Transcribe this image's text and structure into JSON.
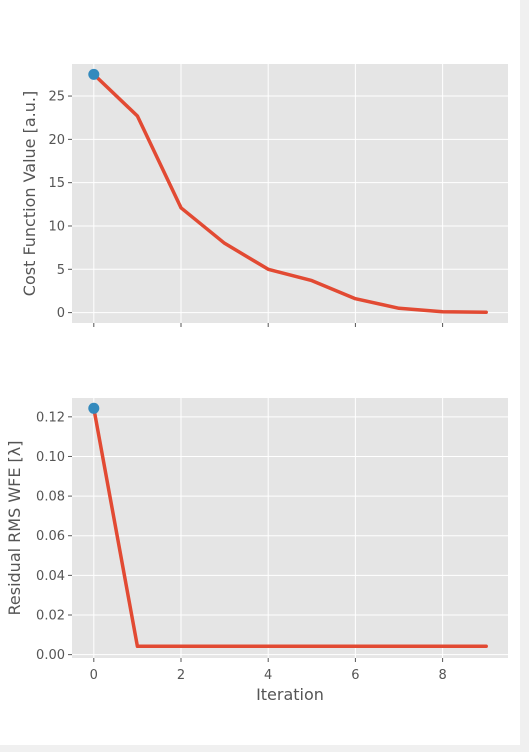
{
  "colors": {
    "panel_bg": "#e5e5e5",
    "grid": "#ffffff",
    "tick_text": "#555555",
    "line": "#e24a33",
    "marker": "#348abd"
  },
  "chart_data": [
    {
      "type": "line",
      "title": "",
      "xlabel": "",
      "ylabel": "Cost Function Value [a.u.]",
      "x": [
        0,
        1,
        2,
        3,
        4,
        5,
        6,
        7,
        8,
        9
      ],
      "series": [
        {
          "values": [
            27.5,
            22.7,
            12.1,
            8.0,
            5.0,
            3.7,
            1.6,
            0.5,
            0.1,
            0.05
          ]
        }
      ],
      "highlight_point": {
        "x": 0,
        "y": 27.5
      },
      "xlim": [
        -0.5,
        9.5
      ],
      "ylim": [
        -1.2,
        28.7
      ],
      "xticks": [
        0,
        2,
        4,
        6,
        8
      ],
      "xtick_labels_visible": false,
      "yticks": [
        0,
        5,
        10,
        15,
        20,
        25
      ],
      "ytick_labels": [
        "0",
        "5",
        "10",
        "15",
        "20",
        "25"
      ],
      "grid": true,
      "style": "ggplot"
    },
    {
      "type": "line",
      "title": "",
      "xlabel": "Iteration",
      "ylabel": "Residual RMS WFE [λ]",
      "x": [
        0,
        1,
        2,
        3,
        4,
        5,
        6,
        7,
        8,
        9
      ],
      "series": [
        {
          "values": [
            0.1243,
            0.0042,
            0.0042,
            0.0042,
            0.0042,
            0.0042,
            0.0042,
            0.0042,
            0.0042,
            0.0042
          ]
        }
      ],
      "highlight_point": {
        "x": 0,
        "y": 0.1243
      },
      "xlim": [
        -0.5,
        9.5
      ],
      "ylim": [
        -0.0017,
        0.1295
      ],
      "xticks": [
        0,
        2,
        4,
        6,
        8
      ],
      "xtick_labels": [
        "0",
        "2",
        "4",
        "6",
        "8"
      ],
      "xtick_labels_visible": true,
      "yticks": [
        0.0,
        0.02,
        0.04,
        0.06,
        0.08,
        0.1,
        0.12
      ],
      "ytick_labels": [
        "0.00",
        "0.02",
        "0.04",
        "0.06",
        "0.08",
        "0.10",
        "0.12"
      ],
      "grid": true,
      "style": "ggplot"
    }
  ]
}
